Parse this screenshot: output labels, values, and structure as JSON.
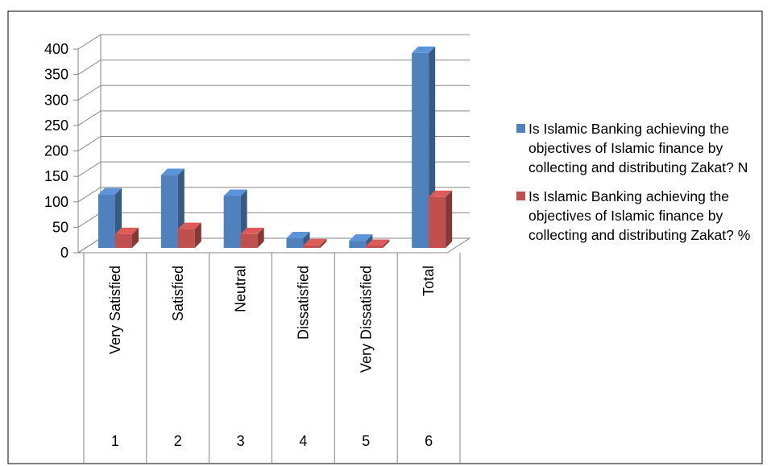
{
  "chart_data": {
    "type": "bar3d",
    "categories": [
      "Very Satisfied",
      "Satisfied",
      "Neutral",
      "Dissatisfied",
      "Very Dissatisfied",
      "Total"
    ],
    "category_numbers": [
      "1",
      "2",
      "3",
      "4",
      "5",
      "6"
    ],
    "series": [
      {
        "name": "Is Islamic Banking achieving the objectives of Islamic finance by collecting and distributing Zakat? N",
        "color": "#4f81bd",
        "values": [
          105,
          143,
          102,
          19,
          14,
          383
        ]
      },
      {
        "name": "Is Islamic Banking achieving the objectives of Islamic finance by collecting and distributing Zakat? %",
        "color": "#c0504d",
        "values": [
          27,
          37,
          27,
          5,
          4,
          100
        ]
      }
    ],
    "ylim": [
      0,
      400
    ],
    "yticks": [
      0,
      50,
      100,
      150,
      200,
      250,
      300,
      350,
      400
    ],
    "grid": true,
    "legend": "right"
  }
}
